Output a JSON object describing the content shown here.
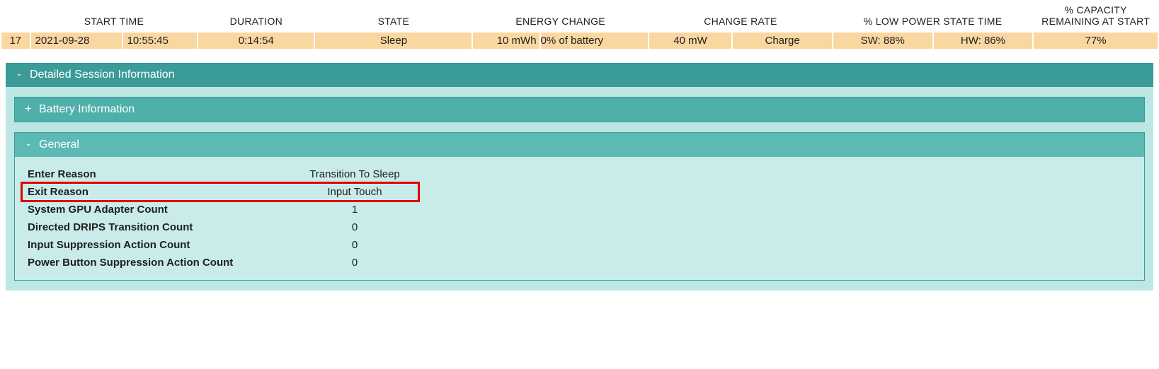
{
  "colors": {
    "row_bg": "#fad7a0",
    "panel_outer_bg": "#bde7e5",
    "panel_header_dark": "#3a9b97",
    "panel_header_mid": "#4fb0ab",
    "panel_header_light": "#5cb9b4",
    "panel_inner_border": "#3a9b97",
    "panel_body_bg": "#c9ecea",
    "highlight": "#e00000"
  },
  "summary": {
    "headers": {
      "start_time": "START TIME",
      "duration": "DURATION",
      "state": "STATE",
      "energy_change": "ENERGY CHANGE",
      "change_rate": "CHANGE RATE",
      "low_power": "% LOW POWER STATE TIME",
      "capacity": "% CAPACITY REMAINING AT START"
    },
    "row": {
      "index": "17",
      "date": "2021-09-28",
      "time": "10:55:45",
      "duration": "0:14:54",
      "state": "Sleep",
      "energy_mwh": "10 mWh",
      "energy_pct": "0% of battery",
      "rate_mw": "40 mW",
      "rate_dir": "Charge",
      "low_sw": "SW: 88%",
      "low_hw": "HW: 86%",
      "capacity": "77%"
    }
  },
  "panels": {
    "detailed": {
      "toggle": "-",
      "title": "Detailed Session Information"
    },
    "battery": {
      "toggle": "+",
      "title": "Battery Information"
    },
    "general": {
      "toggle": "-",
      "title": "General"
    }
  },
  "general_rows": [
    {
      "key": "Enter Reason",
      "value": "Transition To Sleep",
      "highlight": false
    },
    {
      "key": "Exit Reason",
      "value": "Input Touch",
      "highlight": true
    },
    {
      "key": "System GPU Adapter Count",
      "value": "1",
      "highlight": false
    },
    {
      "key": "Directed DRIPS Transition Count",
      "value": "0",
      "highlight": false
    },
    {
      "key": "Input Suppression Action Count",
      "value": "0",
      "highlight": false
    },
    {
      "key": "Power Button Suppression Action Count",
      "value": "0",
      "highlight": false
    }
  ]
}
